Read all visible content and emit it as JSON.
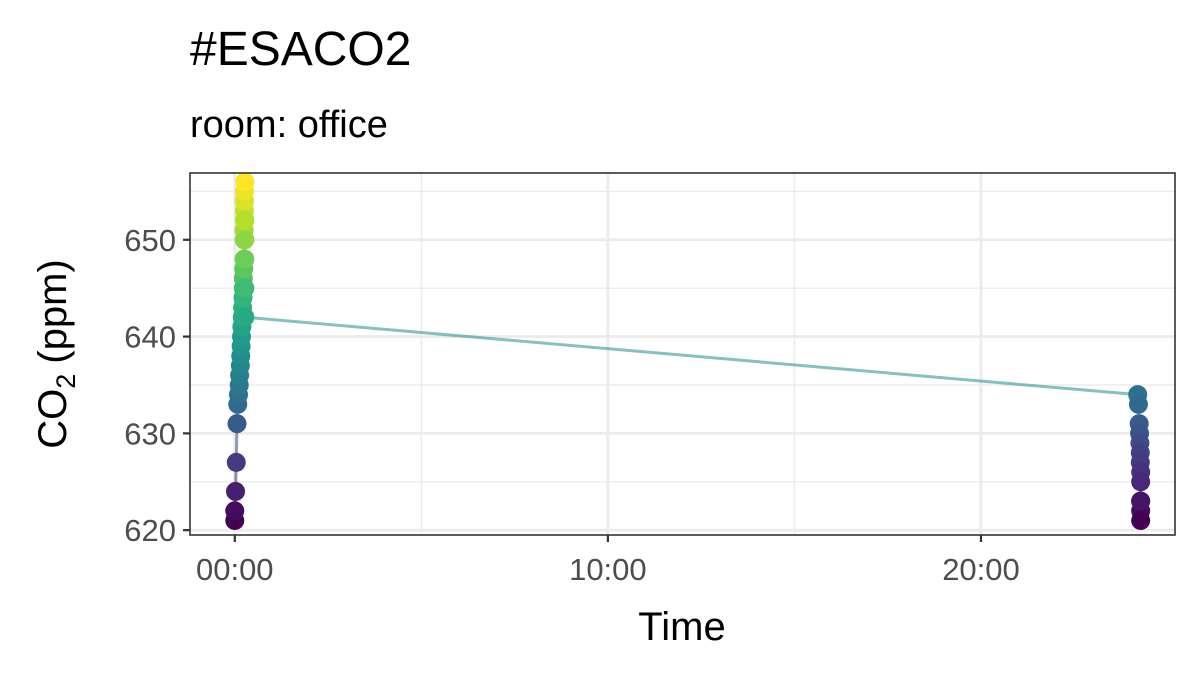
{
  "chart_data": {
    "type": "scatter",
    "title": "#ESACO2",
    "subtitle": "room: office",
    "xlabel": "Time",
    "ylabel": {
      "main": "CO",
      "sub": "2",
      "unit": "(ppm)"
    },
    "x_unit": "hours",
    "xlim": [
      -1.2,
      25.2
    ],
    "ylim": [
      619.5,
      656.9
    ],
    "x_ticks": [
      0,
      10,
      20
    ],
    "x_tick_labels": [
      "00:00",
      "10:00",
      "20:00"
    ],
    "y_ticks": [
      620,
      630,
      640,
      650
    ],
    "y_tick_labels": [
      "620",
      "630",
      "640",
      "650"
    ],
    "grid": true,
    "legend": "none",
    "color_scale": "viridis",
    "series": [
      {
        "x": [
          0.0,
          0.0,
          0.02,
          0.04,
          0.06,
          0.08,
          0.1,
          0.12,
          0.13,
          0.15,
          0.16,
          0.17,
          0.18,
          0.19,
          0.2,
          0.21,
          0.22,
          0.23,
          0.23,
          0.24,
          0.25,
          0.25,
          0.25,
          0.26,
          0.26,
          0.26,
          0.26,
          0.27,
          0.27,
          0.27,
          0.27,
          0.27,
          0.27
        ],
        "y": [
          621,
          622,
          624,
          627,
          631,
          633,
          634,
          635,
          636,
          637,
          638,
          639,
          640,
          641,
          642,
          643,
          644,
          645,
          646,
          647,
          648,
          650,
          651,
          652,
          653,
          654,
          655,
          656,
          652,
          650,
          648,
          645,
          642
        ]
      },
      {
        "x": [
          24.2,
          24.22,
          24.24,
          24.25,
          24.26,
          24.27,
          24.27,
          24.28,
          24.28,
          24.28,
          24.28,
          24.28,
          24.28
        ],
        "y": [
          634,
          633,
          631,
          630,
          629,
          628,
          627,
          626,
          625,
          623,
          622,
          621,
          623
        ]
      }
    ]
  }
}
